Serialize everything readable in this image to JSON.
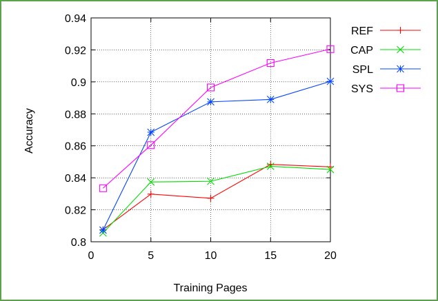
{
  "chart_data": {
    "type": "line",
    "title": "",
    "xlabel": "Training Pages",
    "ylabel": "Accuracy",
    "xlim": [
      0,
      20
    ],
    "ylim": [
      0.8,
      0.94
    ],
    "x_ticks": [
      "0",
      "5",
      "10",
      "15",
      "20"
    ],
    "x_tick_values": [
      0,
      5,
      10,
      15,
      20
    ],
    "y_ticks": [
      "0.8",
      "0.82",
      "0.84",
      "0.86",
      "0.88",
      "0.9",
      "0.92",
      "0.94"
    ],
    "y_tick_values": [
      0.8,
      0.82,
      0.84,
      0.86,
      0.88,
      0.9,
      0.92,
      0.94
    ],
    "grid": true,
    "legend_position": "top-right",
    "x": [
      1,
      5,
      10,
      15,
      20
    ],
    "series": [
      {
        "name": "REF",
        "color": "#ff0000",
        "marker": "plus",
        "values": [
          0.8075,
          0.8298,
          0.8272,
          0.8484,
          0.8468
        ]
      },
      {
        "name": "CAP",
        "color": "#00dd00",
        "marker": "x",
        "values": [
          0.8055,
          0.8374,
          0.8378,
          0.8472,
          0.8452
        ]
      },
      {
        "name": "SPL",
        "color": "#0044ff",
        "marker": "asterisk",
        "values": [
          0.8073,
          0.8685,
          0.8875,
          0.889,
          0.9003
        ]
      },
      {
        "name": "SYS",
        "color": "#ff00ff",
        "marker": "square",
        "values": [
          0.8335,
          0.8604,
          0.8965,
          0.9118,
          0.9205
        ]
      }
    ]
  }
}
